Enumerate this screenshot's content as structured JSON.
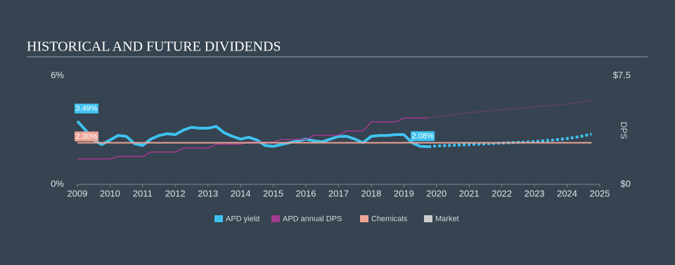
{
  "chart_data": {
    "type": "line",
    "title": "HISTORICAL AND FUTURE DIVIDENDS",
    "x": [
      2009,
      2009.25,
      2009.5,
      2009.75,
      2010,
      2010.25,
      2010.5,
      2010.75,
      2011,
      2011.25,
      2011.5,
      2011.75,
      2012,
      2012.25,
      2012.5,
      2012.75,
      2013,
      2013.25,
      2013.5,
      2013.75,
      2014,
      2014.25,
      2014.5,
      2014.75,
      2015,
      2015.25,
      2015.5,
      2015.75,
      2016,
      2016.25,
      2016.5,
      2016.75,
      2017,
      2017.25,
      2017.5,
      2017.75,
      2018,
      2018.25,
      2018.5,
      2018.75,
      2019,
      2019.25,
      2019.5,
      2019.75,
      2020,
      2020.25,
      2020.5,
      2020.75,
      2021,
      2021.25,
      2021.5,
      2021.75,
      2022,
      2022.25,
      2022.5,
      2022.75,
      2023,
      2023.25,
      2023.5,
      2023.75,
      2024,
      2024.25,
      2024.5,
      2024.75
    ],
    "xlim": [
      2009,
      2025
    ],
    "xticks": [
      2009,
      2010,
      2011,
      2012,
      2013,
      2014,
      2015,
      2016,
      2017,
      2018,
      2019,
      2020,
      2021,
      2022,
      2023,
      2024,
      2025
    ],
    "ylim": [
      0,
      6
    ],
    "yticks": [
      {
        "value": 0,
        "label": "0%"
      },
      {
        "value": 6,
        "label": "6%"
      }
    ],
    "y2lim": [
      0,
      7.5
    ],
    "y2ticks": [
      {
        "value": 0,
        "label": "$0"
      },
      {
        "value": 7.5,
        "label": "$7.5"
      }
    ],
    "y2label": "DPS",
    "forecast_start": 2019.75,
    "series": [
      {
        "name": "APD yield",
        "color": "#3ec2f0",
        "forecast": true,
        "values": [
          3.49,
          3.0,
          2.45,
          2.2,
          2.45,
          2.7,
          2.65,
          2.25,
          2.15,
          2.5,
          2.7,
          2.8,
          2.75,
          3.0,
          3.15,
          3.1,
          3.1,
          3.2,
          2.85,
          2.65,
          2.5,
          2.6,
          2.45,
          2.15,
          2.1,
          2.2,
          2.3,
          2.4,
          2.5,
          2.4,
          2.35,
          2.5,
          2.65,
          2.65,
          2.5,
          2.3,
          2.65,
          2.7,
          2.7,
          2.75,
          2.75,
          2.3,
          2.1,
          2.08,
          2.12,
          2.14,
          2.16,
          2.18,
          2.2,
          2.22,
          2.24,
          2.26,
          2.28,
          2.3,
          2.32,
          2.34,
          2.37,
          2.4,
          2.44,
          2.48,
          2.53,
          2.6,
          2.68,
          2.78
        ],
        "value_labels": [
          "3.49%",
          null,
          null,
          null,
          null,
          null,
          null,
          null,
          null,
          null,
          null,
          null,
          null,
          null,
          null,
          null,
          null,
          null,
          null,
          null,
          null,
          null,
          null,
          null,
          null,
          null,
          null,
          null,
          null,
          null,
          null,
          null,
          null,
          null,
          null,
          null,
          null,
          null,
          null,
          null,
          null,
          null,
          null,
          "2.08%",
          null,
          null,
          null,
          null,
          null,
          null,
          null,
          null,
          null,
          null,
          null,
          null,
          null,
          null,
          null,
          null,
          null,
          null,
          null,
          null
        ]
      },
      {
        "name": "APD annual DPS",
        "color": "#a23a8e",
        "axis": "y2",
        "forecast": true,
        "values": [
          1.76,
          1.76,
          1.76,
          1.76,
          1.76,
          1.92,
          1.92,
          1.92,
          1.92,
          2.23,
          2.23,
          2.23,
          2.23,
          2.5,
          2.5,
          2.5,
          2.5,
          2.77,
          2.77,
          2.77,
          2.77,
          2.92,
          2.92,
          2.92,
          2.92,
          3.1,
          3.1,
          3.1,
          3.1,
          3.39,
          3.39,
          3.39,
          3.39,
          3.69,
          3.69,
          3.69,
          4.32,
          4.32,
          4.32,
          4.32,
          4.58,
          4.58,
          4.58,
          4.58,
          4.68,
          4.75,
          4.82,
          4.89,
          4.95,
          5.0,
          5.05,
          5.1,
          5.15,
          5.2,
          5.25,
          5.3,
          5.35,
          5.4,
          5.45,
          5.5,
          5.55,
          5.62,
          5.7,
          5.8
        ]
      },
      {
        "name": "Chemicals",
        "color": "#eea596",
        "values": [
          2.3,
          2.3,
          2.3,
          2.3,
          2.3,
          2.3,
          2.3,
          2.3,
          2.3,
          2.3,
          2.3,
          2.3,
          2.3,
          2.3,
          2.3,
          2.3,
          2.3,
          2.3,
          2.3,
          2.3,
          2.3,
          2.3,
          2.3,
          2.3,
          2.3,
          2.3,
          2.3,
          2.3,
          2.3,
          2.3,
          2.3,
          2.3,
          2.3,
          2.3,
          2.3,
          2.3,
          2.3,
          2.3,
          2.3,
          2.3,
          2.3,
          2.3,
          2.3,
          2.3,
          2.3,
          2.3,
          2.3,
          2.3,
          2.3,
          2.3,
          2.3,
          2.3,
          2.3,
          2.3,
          2.3,
          2.3,
          2.3,
          2.3,
          2.3,
          2.3,
          2.3,
          2.3,
          2.3,
          2.3
        ],
        "value_labels": [
          "2.30%",
          null,
          null,
          null,
          null,
          null,
          null,
          null,
          null,
          null,
          null,
          null,
          null,
          null,
          null,
          null,
          null,
          null,
          null,
          null,
          null,
          null,
          null,
          null,
          null,
          null,
          null,
          null,
          null,
          null,
          null,
          null,
          null,
          null,
          null,
          null,
          null,
          null,
          null,
          null,
          null,
          null,
          null,
          null,
          null,
          null,
          null,
          null,
          null,
          null,
          null,
          null,
          null,
          null,
          null,
          null,
          null,
          null,
          null,
          null,
          null,
          null,
          null,
          null
        ]
      },
      {
        "name": "Market",
        "color": "#cccccc",
        "values": [
          null,
          null,
          null,
          null,
          null,
          null,
          null,
          null,
          null,
          null,
          null,
          null,
          null,
          null,
          null,
          null,
          null,
          null,
          null,
          null,
          null,
          null,
          null,
          null,
          null,
          null,
          null,
          null,
          null,
          null,
          null,
          null,
          null,
          null,
          null,
          null,
          null,
          null,
          null,
          null,
          null,
          null,
          null,
          null,
          null,
          null,
          null,
          null,
          null,
          null,
          null,
          null,
          null,
          null,
          null,
          null,
          null,
          null,
          null,
          null,
          null,
          null,
          null,
          null
        ]
      }
    ]
  }
}
